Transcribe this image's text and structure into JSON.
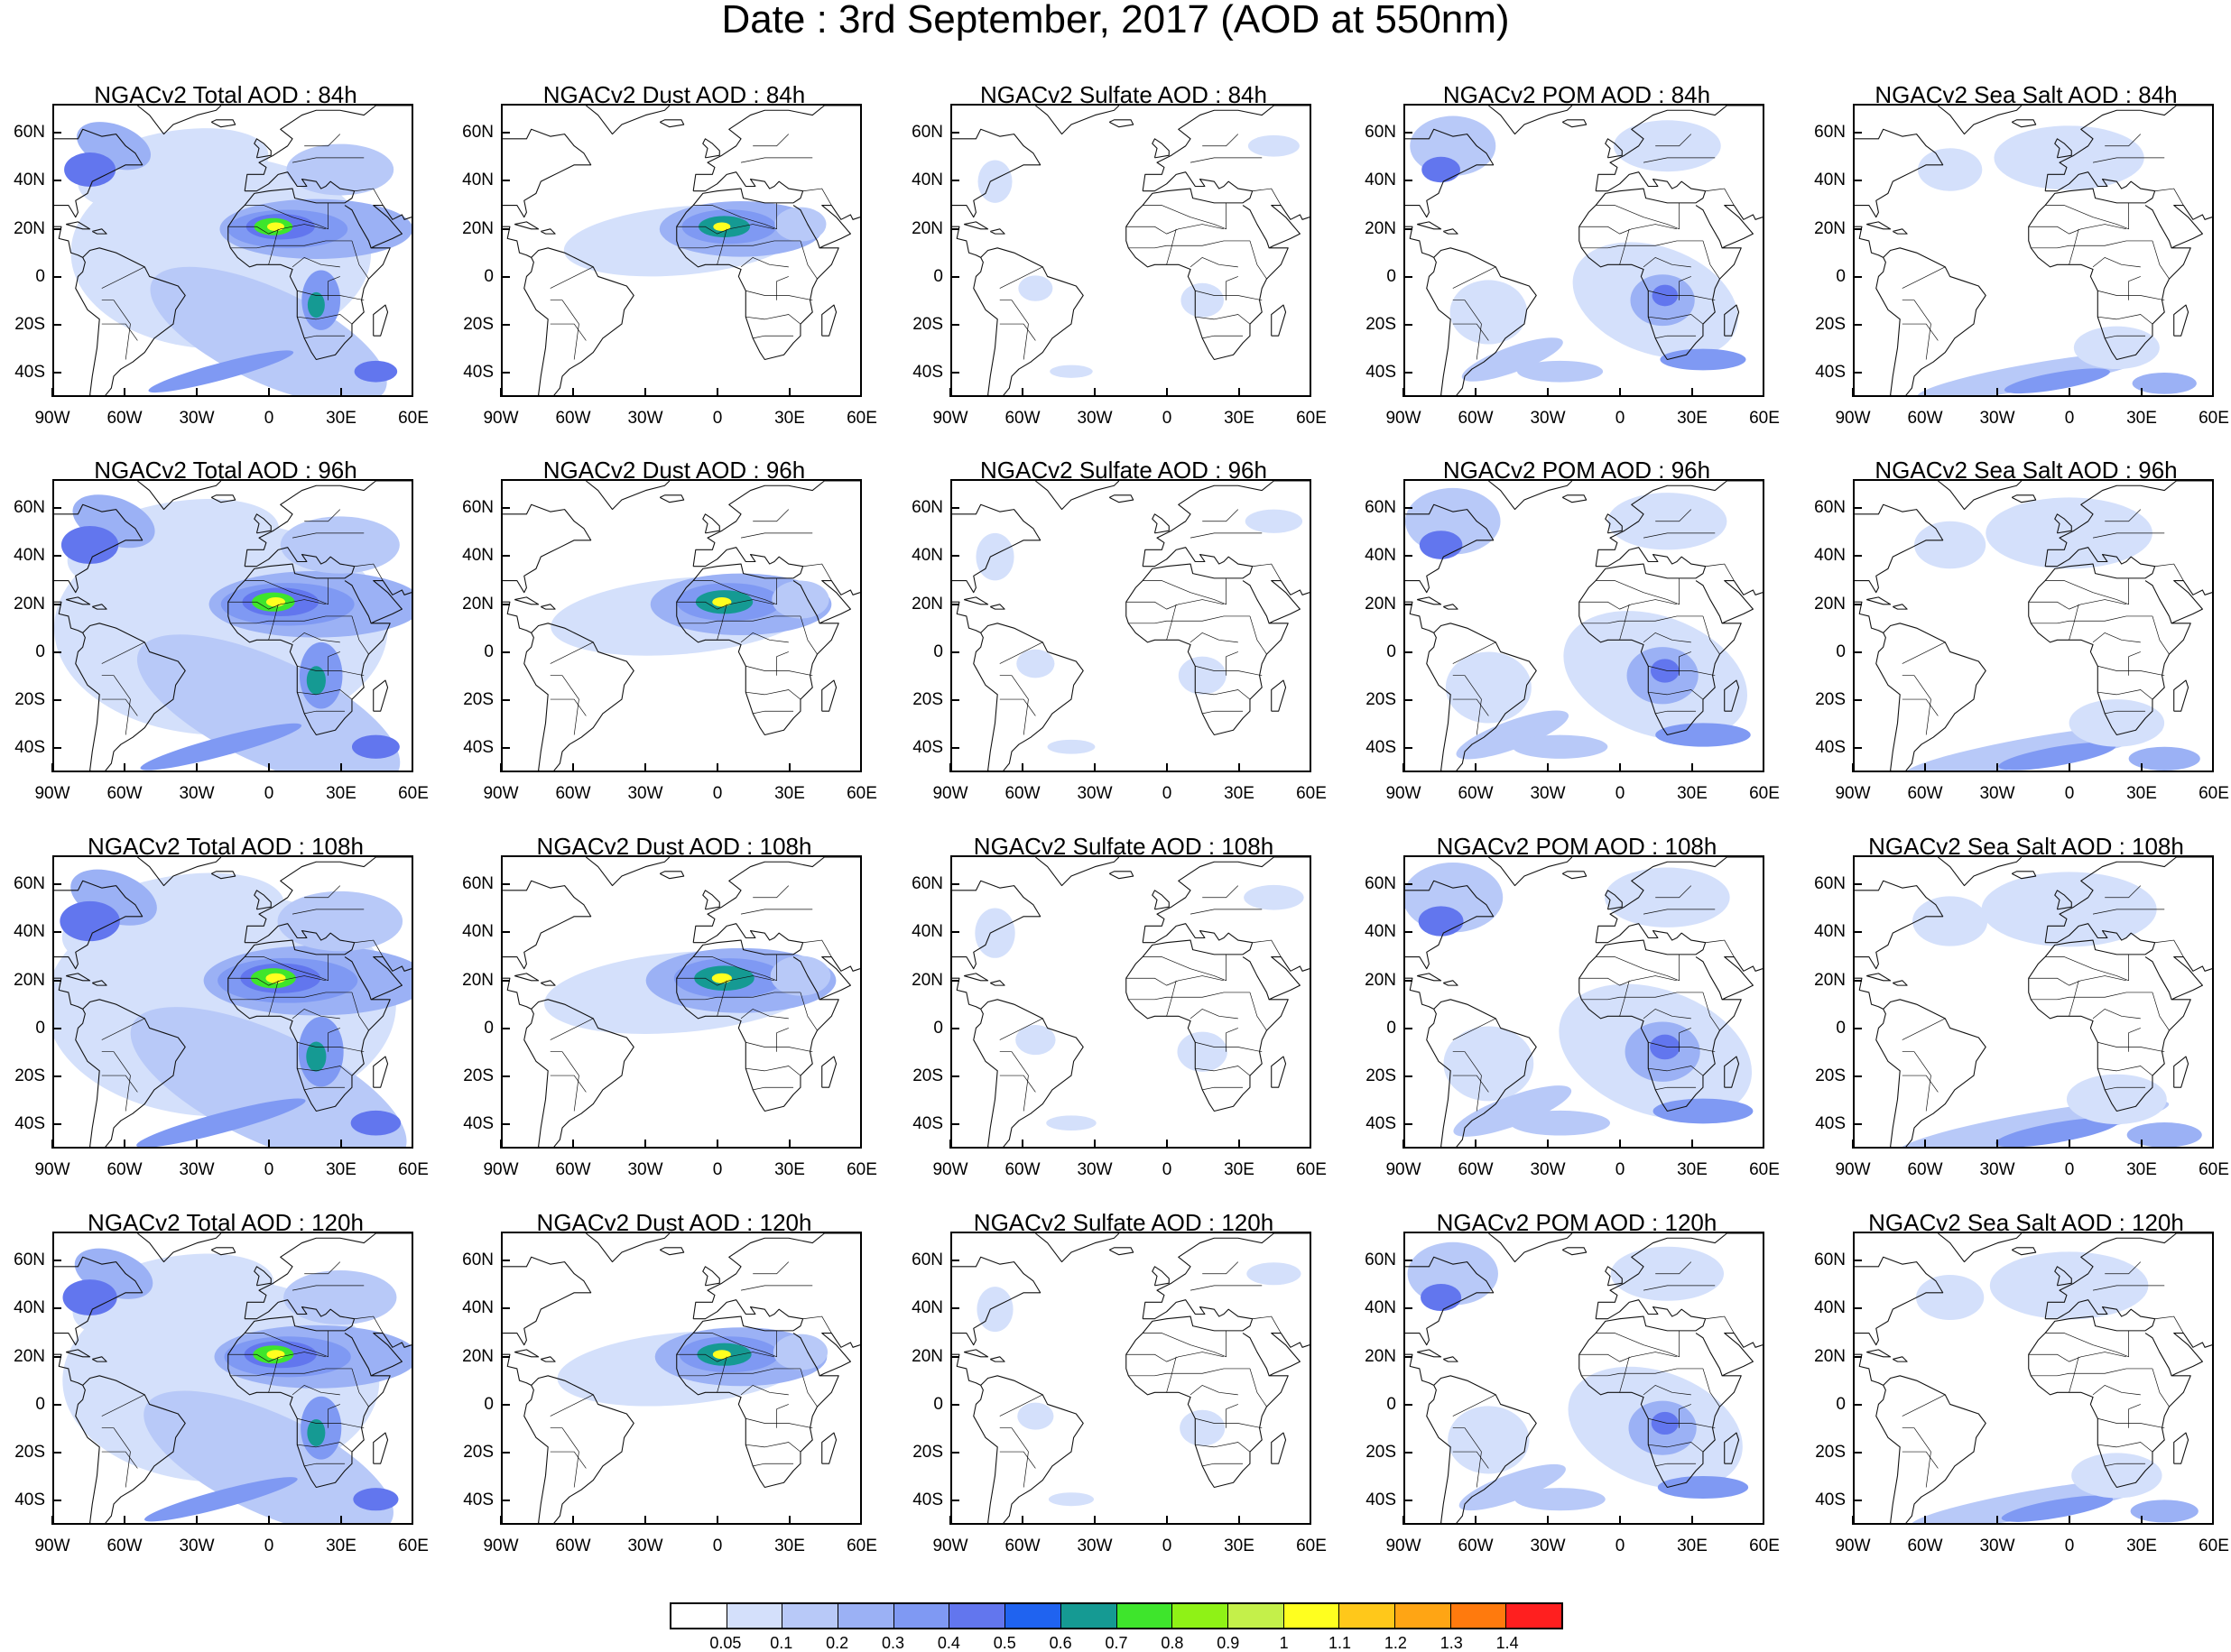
{
  "title": "Date : 3rd September, 2017 (AOD at 550nm)",
  "map": {
    "lon_range": [
      -90,
      60
    ],
    "lat_range": [
      -50,
      72
    ],
    "lat_ticks": [
      "60N",
      "40N",
      "20N",
      "0",
      "20S",
      "40S"
    ],
    "lat_tick_values": [
      60,
      40,
      20,
      0,
      -20,
      -40
    ],
    "lon_ticks": [
      "90W",
      "60W",
      "30W",
      "0",
      "30E",
      "60E"
    ],
    "lon_tick_values": [
      -90,
      -60,
      -30,
      0,
      30,
      60
    ]
  },
  "columns": [
    "total",
    "dust",
    "sulfate",
    "pom",
    "seasalt"
  ],
  "panels": [
    {
      "title": "NGACv2 Total AOD : 84h",
      "kind": "total"
    },
    {
      "title": "NGACv2 Dust AOD : 84h",
      "kind": "dust"
    },
    {
      "title": "NGACv2 Sulfate AOD : 84h",
      "kind": "sulfate"
    },
    {
      "title": "NGACv2 POM AOD : 84h",
      "kind": "pom"
    },
    {
      "title": "NGACv2 Sea Salt AOD : 84h",
      "kind": "seasalt"
    },
    {
      "title": "NGACv2 Total AOD : 96h",
      "kind": "total"
    },
    {
      "title": "NGACv2 Dust AOD : 96h",
      "kind": "dust"
    },
    {
      "title": "NGACv2 Sulfate AOD : 96h",
      "kind": "sulfate"
    },
    {
      "title": "NGACv2 POM AOD : 96h",
      "kind": "pom"
    },
    {
      "title": "NGACv2 Sea Salt AOD : 96h",
      "kind": "seasalt"
    },
    {
      "title": "NGACv2 Total AOD : 108h",
      "kind": "total"
    },
    {
      "title": "NGACv2 Dust AOD : 108h",
      "kind": "dust"
    },
    {
      "title": "NGACv2 Sulfate AOD : 108h",
      "kind": "sulfate"
    },
    {
      "title": "NGACv2 POM AOD : 108h",
      "kind": "pom"
    },
    {
      "title": "NGACv2 Sea Salt AOD : 108h",
      "kind": "seasalt"
    },
    {
      "title": "NGACv2 Total AOD : 120h",
      "kind": "total"
    },
    {
      "title": "NGACv2 Dust AOD : 120h",
      "kind": "dust"
    },
    {
      "title": "NGACv2 Sulfate AOD : 120h",
      "kind": "sulfate"
    },
    {
      "title": "NGACv2 POM AOD : 120h",
      "kind": "pom"
    },
    {
      "title": "NGACv2 Sea Salt  AOD : 120h",
      "kind": "seasalt"
    }
  ],
  "colorbar": {
    "labels": [
      "0.05",
      "0.1",
      "0.2",
      "0.3",
      "0.4",
      "0.5",
      "0.6",
      "0.7",
      "0.8",
      "0.9",
      "1",
      "1.1",
      "1.2",
      "1.3",
      "1.4"
    ],
    "colors": [
      "#ffffff",
      "#d4e0fb",
      "#b8c9f8",
      "#9bb1f5",
      "#7f99f3",
      "#6276ee",
      "#1f63f0",
      "#159a93",
      "#3ee52c",
      "#8ff216",
      "#c4f04a",
      "#ffff1f",
      "#ffc81a",
      "#ffa514",
      "#ff7a0d",
      "#ff1f1f"
    ]
  }
}
